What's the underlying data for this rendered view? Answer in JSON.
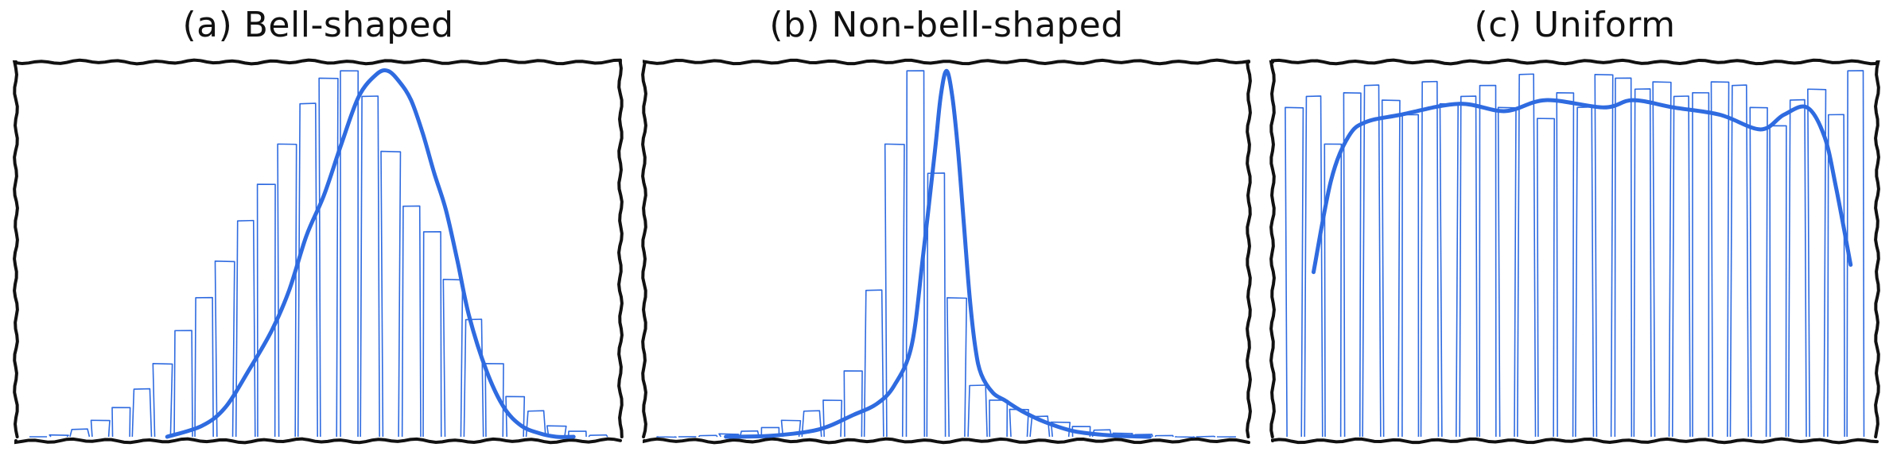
{
  "chart_data": [
    {
      "type": "bar",
      "title": "(a) Bell-shaped",
      "xlabel": "",
      "ylabel": "",
      "bins": 28,
      "bar_values": [
        0.0,
        0.005,
        0.02,
        0.045,
        0.08,
        0.13,
        0.2,
        0.29,
        0.38,
        0.48,
        0.59,
        0.69,
        0.8,
        0.91,
        0.98,
        1.0,
        0.93,
        0.78,
        0.63,
        0.56,
        0.43,
        0.32,
        0.2,
        0.11,
        0.07,
        0.03,
        0.015,
        0.004
      ],
      "curve_x": [
        0.24,
        0.3,
        0.34,
        0.38,
        0.42,
        0.45,
        0.48,
        0.51,
        0.54,
        0.57,
        0.6,
        0.62,
        0.64,
        0.66,
        0.68,
        0.7,
        0.72,
        0.74,
        0.76,
        0.79,
        0.82,
        0.85,
        0.88,
        0.91,
        0.94
      ],
      "curve_y": [
        0.0,
        0.03,
        0.08,
        0.18,
        0.29,
        0.4,
        0.55,
        0.66,
        0.8,
        0.93,
        0.99,
        1.0,
        0.97,
        0.92,
        0.83,
        0.72,
        0.62,
        0.48,
        0.33,
        0.18,
        0.08,
        0.03,
        0.01,
        0.0,
        0.0
      ],
      "ylim": [
        0,
        1.02
      ],
      "grid": false,
      "color": "#2f6be0"
    },
    {
      "type": "bar",
      "title": "(b) Non-bell-shaped",
      "xlabel": "",
      "ylabel": "",
      "bins": 28,
      "bar_values": [
        0.0,
        0.0,
        0.003,
        0.008,
        0.015,
        0.025,
        0.045,
        0.07,
        0.1,
        0.18,
        0.4,
        0.8,
        1.0,
        0.72,
        0.38,
        0.14,
        0.1,
        0.075,
        0.055,
        0.04,
        0.028,
        0.018,
        0.01,
        0.006,
        0.003,
        0.0,
        0.0,
        0.0
      ],
      "curve_x": [
        0.12,
        0.2,
        0.28,
        0.34,
        0.38,
        0.41,
        0.44,
        0.46,
        0.48,
        0.49,
        0.5,
        0.51,
        0.52,
        0.53,
        0.54,
        0.55,
        0.56,
        0.58,
        0.6,
        0.63,
        0.67,
        0.72,
        0.78,
        0.85
      ],
      "curve_y": [
        0.0,
        0.003,
        0.02,
        0.06,
        0.09,
        0.14,
        0.25,
        0.5,
        0.78,
        0.93,
        1.0,
        0.93,
        0.78,
        0.58,
        0.38,
        0.24,
        0.17,
        0.12,
        0.1,
        0.07,
        0.04,
        0.015,
        0.004,
        0.0
      ],
      "ylim": [
        0,
        1.02
      ],
      "grid": false,
      "color": "#2f6be0"
    },
    {
      "type": "bar",
      "title": "(c) Uniform",
      "xlabel": "",
      "ylabel": "",
      "bins": 30,
      "bar_values": [
        0.9,
        0.93,
        0.8,
        0.94,
        0.96,
        0.92,
        0.88,
        0.97,
        0.91,
        0.93,
        0.96,
        0.9,
        0.99,
        0.87,
        0.94,
        0.9,
        0.99,
        0.98,
        0.95,
        0.97,
        0.93,
        0.94,
        0.97,
        0.96,
        0.9,
        0.85,
        0.92,
        0.95,
        0.88,
        1.0
      ],
      "curve_x": [
        0.05,
        0.08,
        0.11,
        0.14,
        0.2,
        0.3,
        0.38,
        0.45,
        0.55,
        0.6,
        0.67,
        0.75,
        0.82,
        0.86,
        0.9,
        0.93,
        0.95,
        0.975
      ],
      "curve_y": [
        0.45,
        0.7,
        0.82,
        0.86,
        0.88,
        0.91,
        0.89,
        0.92,
        0.9,
        0.92,
        0.9,
        0.88,
        0.84,
        0.88,
        0.9,
        0.82,
        0.68,
        0.47
      ],
      "ylim": [
        0,
        1.02
      ],
      "grid": false,
      "color": "#2f6be0"
    }
  ]
}
